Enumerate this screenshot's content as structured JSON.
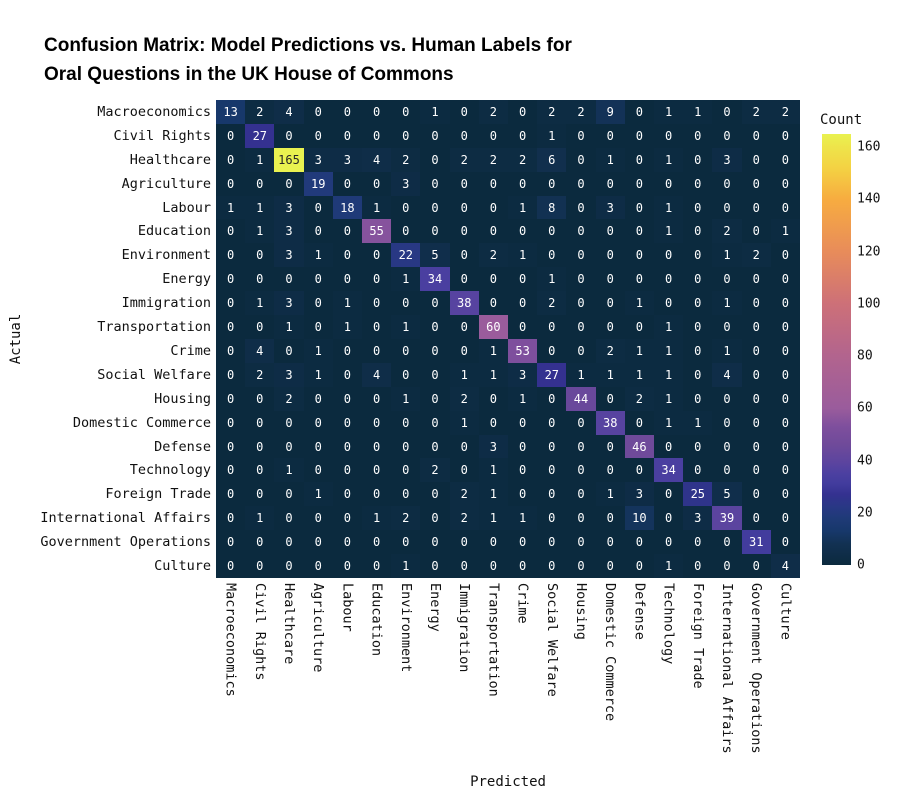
{
  "title": {
    "line1": "Confusion Matrix: Model Predictions vs. Human Labels for",
    "line2": "Oral Questions in the UK House of Commons"
  },
  "axes": {
    "xlabel": "Predicted",
    "ylabel": "Actual"
  },
  "colorbar": {
    "label": "Count",
    "ticks": [
      0,
      20,
      40,
      60,
      80,
      100,
      120,
      140,
      160
    ],
    "vmin": 0,
    "vmax": 165
  },
  "colors": {
    "background": "#ffffff",
    "annotation_light": "#ffffff",
    "annotation_dark": "#262626",
    "colormap_stops": [
      [
        0,
        "#0b2a3e"
      ],
      [
        4,
        "#0f2d48"
      ],
      [
        8,
        "#123152"
      ],
      [
        13,
        "#17386b"
      ],
      [
        18,
        "#1f3a78"
      ],
      [
        22,
        "#283884"
      ],
      [
        27,
        "#343190"
      ],
      [
        31,
        "#423c9d"
      ],
      [
        35,
        "#4c40a1"
      ],
      [
        39,
        "#5b449f"
      ],
      [
        46,
        "#6f4a9a"
      ],
      [
        53,
        "#7e4f9d"
      ],
      [
        60,
        "#9a5c9c"
      ],
      [
        80,
        "#b2648e"
      ],
      [
        100,
        "#cd7078"
      ],
      [
        120,
        "#e88c5a"
      ],
      [
        140,
        "#f7ac40"
      ],
      [
        152,
        "#f4d243"
      ],
      [
        160,
        "#eee44a"
      ],
      [
        165,
        "#e9f250"
      ]
    ]
  },
  "chart_data": {
    "type": "heatmap",
    "title": "Confusion Matrix: Model Predictions vs. Human Labels for Oral Questions in the UK House of Commons",
    "xlabel": "Predicted",
    "ylabel": "Actual",
    "legend_position": "right-colorbar",
    "grid": false,
    "categories": [
      "Macroeconomics",
      "Civil Rights",
      "Healthcare",
      "Agriculture",
      "Labour",
      "Education",
      "Environment",
      "Energy",
      "Immigration",
      "Transportation",
      "Crime",
      "Social Welfare",
      "Housing",
      "Domestic Commerce",
      "Defense",
      "Technology",
      "Foreign Trade",
      "International Affairs",
      "Government Operations",
      "Culture"
    ],
    "matrix": [
      [
        13,
        2,
        4,
        0,
        0,
        0,
        0,
        1,
        0,
        2,
        0,
        2,
        2,
        9,
        0,
        1,
        1,
        0,
        2,
        2
      ],
      [
        0,
        27,
        0,
        0,
        0,
        0,
        0,
        0,
        0,
        0,
        0,
        1,
        0,
        0,
        0,
        0,
        0,
        0,
        0,
        0
      ],
      [
        0,
        1,
        165,
        3,
        3,
        4,
        2,
        0,
        2,
        2,
        2,
        6,
        0,
        1,
        0,
        1,
        0,
        3,
        0,
        0
      ],
      [
        0,
        0,
        0,
        19,
        0,
        0,
        3,
        0,
        0,
        0,
        0,
        0,
        0,
        0,
        0,
        0,
        0,
        0,
        0,
        0
      ],
      [
        1,
        1,
        3,
        0,
        18,
        1,
        0,
        0,
        0,
        0,
        1,
        8,
        0,
        3,
        0,
        1,
        0,
        0,
        0,
        0
      ],
      [
        0,
        1,
        3,
        0,
        0,
        55,
        0,
        0,
        0,
        0,
        0,
        0,
        0,
        0,
        0,
        1,
        0,
        2,
        0,
        1
      ],
      [
        0,
        0,
        3,
        1,
        0,
        0,
        22,
        5,
        0,
        2,
        1,
        0,
        0,
        0,
        0,
        0,
        0,
        1,
        2,
        0
      ],
      [
        0,
        0,
        0,
        0,
        0,
        0,
        1,
        34,
        0,
        0,
        0,
        1,
        0,
        0,
        0,
        0,
        0,
        0,
        0,
        0
      ],
      [
        0,
        1,
        3,
        0,
        1,
        0,
        0,
        0,
        38,
        0,
        0,
        2,
        0,
        0,
        1,
        0,
        0,
        1,
        0,
        0
      ],
      [
        0,
        0,
        1,
        0,
        1,
        0,
        1,
        0,
        0,
        60,
        0,
        0,
        0,
        0,
        0,
        1,
        0,
        0,
        0,
        0
      ],
      [
        0,
        4,
        0,
        1,
        0,
        0,
        0,
        0,
        0,
        1,
        53,
        0,
        0,
        2,
        1,
        1,
        0,
        1,
        0,
        0
      ],
      [
        0,
        2,
        3,
        1,
        0,
        4,
        0,
        0,
        1,
        1,
        3,
        27,
        1,
        1,
        1,
        1,
        0,
        4,
        0,
        0
      ],
      [
        0,
        0,
        2,
        0,
        0,
        0,
        1,
        0,
        2,
        0,
        1,
        0,
        44,
        0,
        2,
        1,
        0,
        0,
        0,
        0
      ],
      [
        0,
        0,
        0,
        0,
        0,
        0,
        0,
        0,
        1,
        0,
        0,
        0,
        0,
        38,
        0,
        1,
        1,
        0,
        0,
        0
      ],
      [
        0,
        0,
        0,
        0,
        0,
        0,
        0,
        0,
        0,
        3,
        0,
        0,
        0,
        0,
        46,
        0,
        0,
        0,
        0,
        0
      ],
      [
        0,
        0,
        1,
        0,
        0,
        0,
        0,
        2,
        0,
        1,
        0,
        0,
        0,
        0,
        0,
        34,
        0,
        0,
        0,
        0
      ],
      [
        0,
        0,
        0,
        1,
        0,
        0,
        0,
        0,
        2,
        1,
        0,
        0,
        0,
        1,
        3,
        0,
        25,
        5,
        0,
        0
      ],
      [
        0,
        1,
        0,
        0,
        0,
        1,
        2,
        0,
        2,
        1,
        1,
        0,
        0,
        0,
        10,
        0,
        3,
        39,
        0,
        0
      ],
      [
        0,
        0,
        0,
        0,
        0,
        0,
        0,
        0,
        0,
        0,
        0,
        0,
        0,
        0,
        0,
        0,
        0,
        0,
        31,
        0
      ],
      [
        0,
        0,
        0,
        0,
        0,
        0,
        1,
        0,
        0,
        0,
        0,
        0,
        0,
        0,
        0,
        1,
        0,
        0,
        0,
        4
      ]
    ],
    "colorbar": {
      "label": "Count",
      "ticks": [
        0,
        20,
        40,
        60,
        80,
        100,
        120,
        140,
        160
      ],
      "vmin": 0,
      "vmax": 165
    }
  }
}
